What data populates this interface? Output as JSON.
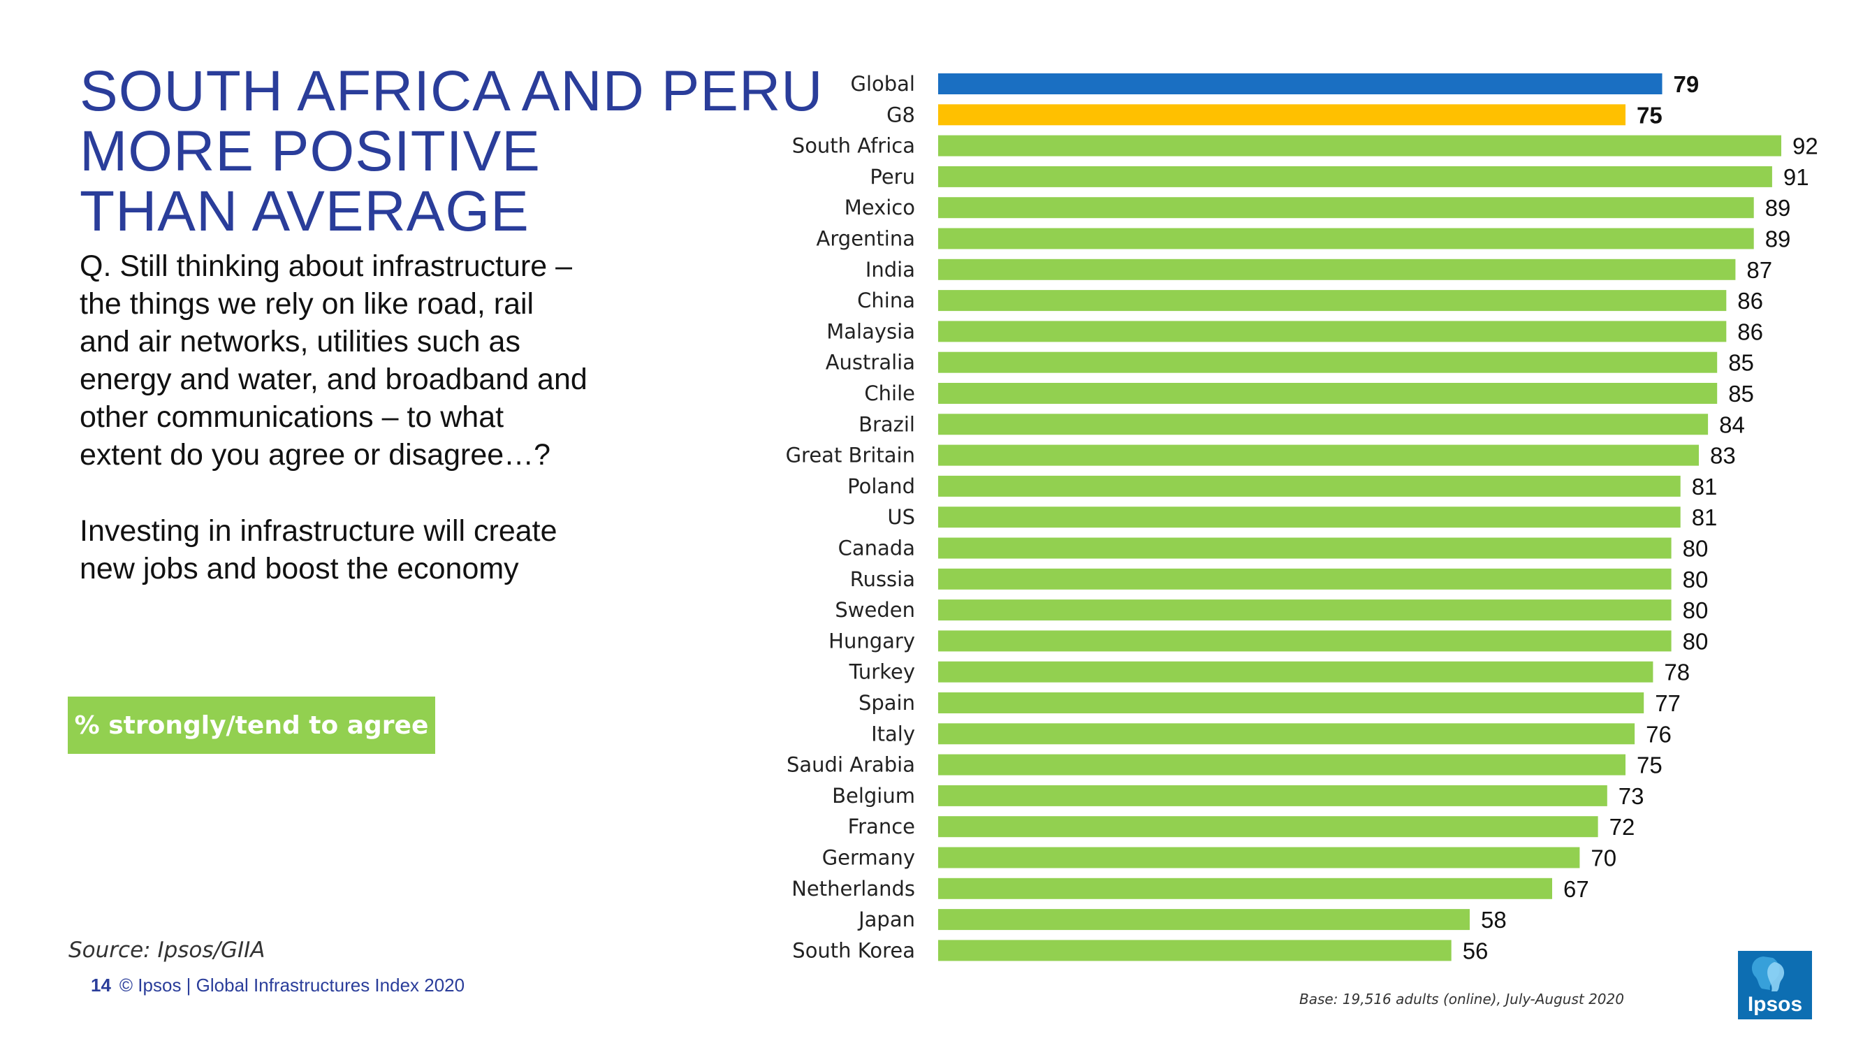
{
  "header": {
    "title_lines": [
      "SOUTH AFRICA AND PERU",
      "MORE POSITIVE",
      "THAN AVERAGE"
    ]
  },
  "question": {
    "lines": [
      "Q. Still thinking about infrastructure –",
      "the things we rely on like road, rail",
      "and air networks, utilities such as",
      "energy and water, and broadband and",
      "other communications – to what",
      "extent do you agree or disagree…?"
    ],
    "statement_lines": [
      "Investing in infrastructure will create",
      "new jobs and boost the economy"
    ]
  },
  "measure_label": "% strongly/tend to agree",
  "source": "Source: Ipsos/GIIA",
  "footer": {
    "page_number": "14",
    "text": "© Ipsos | Global Infrastructures Index 2020"
  },
  "base_note": "Base: 19,516 adults (online), July-August 2020",
  "logo": {
    "text": "Ipsos"
  },
  "colors": {
    "title": "#2a3d9a",
    "global_bar": "#1a6fc2",
    "g8_bar": "#ffc000",
    "country_bar": "#92d050",
    "measure_box": "#92d050",
    "logo_bg": "#0d6eb2"
  },
  "chart_data": {
    "type": "bar",
    "orientation": "horizontal",
    "categories": [
      "Global",
      "G8",
      "South Africa",
      "Peru",
      "Mexico",
      "Argentina",
      "India",
      "China",
      "Malaysia",
      "Australia",
      "Chile",
      "Brazil",
      "Great Britain",
      "Poland",
      "US",
      "Canada",
      "Russia",
      "Sweden",
      "Hungary",
      "Turkey",
      "Spain",
      "Italy",
      "Saudi Arabia",
      "Belgium",
      "France",
      "Germany",
      "Netherlands",
      "Japan",
      "South Korea"
    ],
    "values": [
      79,
      75,
      92,
      91,
      89,
      89,
      87,
      86,
      86,
      85,
      85,
      84,
      83,
      81,
      81,
      80,
      80,
      80,
      80,
      78,
      77,
      76,
      75,
      73,
      72,
      70,
      67,
      58,
      56
    ],
    "highlight": {
      "Global": "global",
      "G8": "g8"
    },
    "bold_labels": [
      "Global",
      "G8"
    ],
    "value_unit": "%",
    "xlim": [
      0,
      100
    ],
    "title": "",
    "xlabel": "",
    "ylabel": "",
    "grid": false,
    "legend": "none"
  }
}
